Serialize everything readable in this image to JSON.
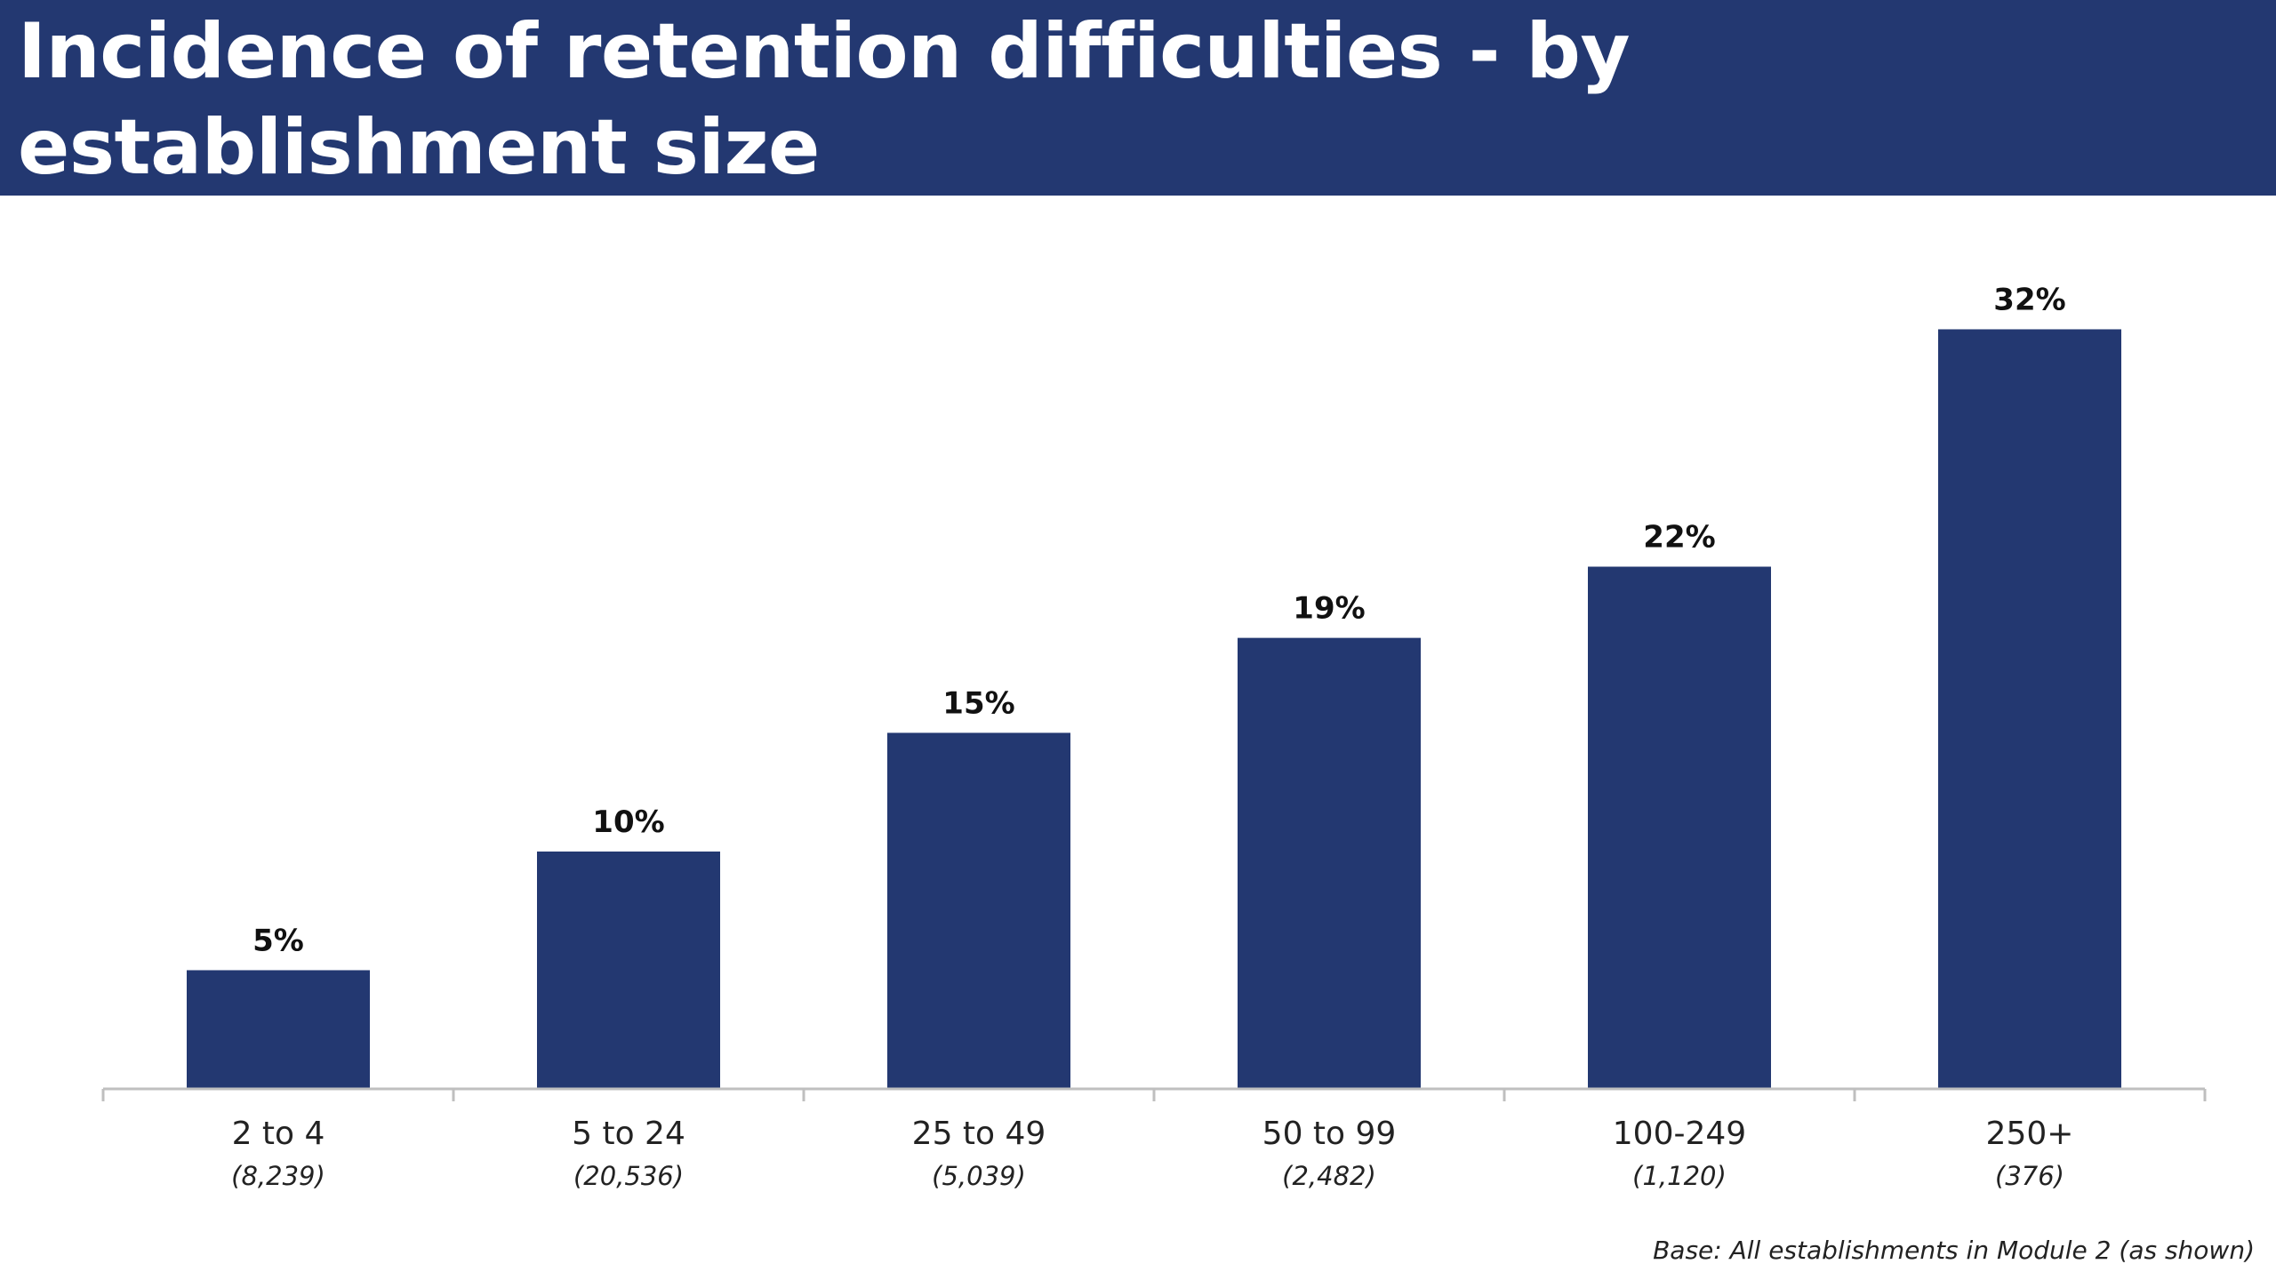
{
  "header": {
    "title": "Incidence of retention difficulties - by establishment size"
  },
  "colors": {
    "banner": "#233871",
    "bar": "#233871",
    "axis": "#bfbfbf"
  },
  "chart_data": {
    "type": "bar",
    "title": "Incidence of retention difficulties - by establishment size",
    "xlabel": "",
    "ylabel": "",
    "ylim": [
      0,
      35
    ],
    "grid": false,
    "categories": [
      "2 to 4",
      "5 to 24",
      "25 to 49",
      "50 to 99",
      "100-249",
      "250+"
    ],
    "category_bases": [
      "(8,239)",
      "(20,536)",
      "(5,039)",
      "(2,482)",
      "(1,120)",
      "(376)"
    ],
    "values": [
      5,
      10,
      15,
      19,
      22,
      32
    ],
    "value_labels": [
      "5%",
      "10%",
      "15%",
      "19%",
      "22%",
      "32%"
    ]
  },
  "footnote": {
    "base": "Base: All establishments in Module 2 (as shown)"
  }
}
